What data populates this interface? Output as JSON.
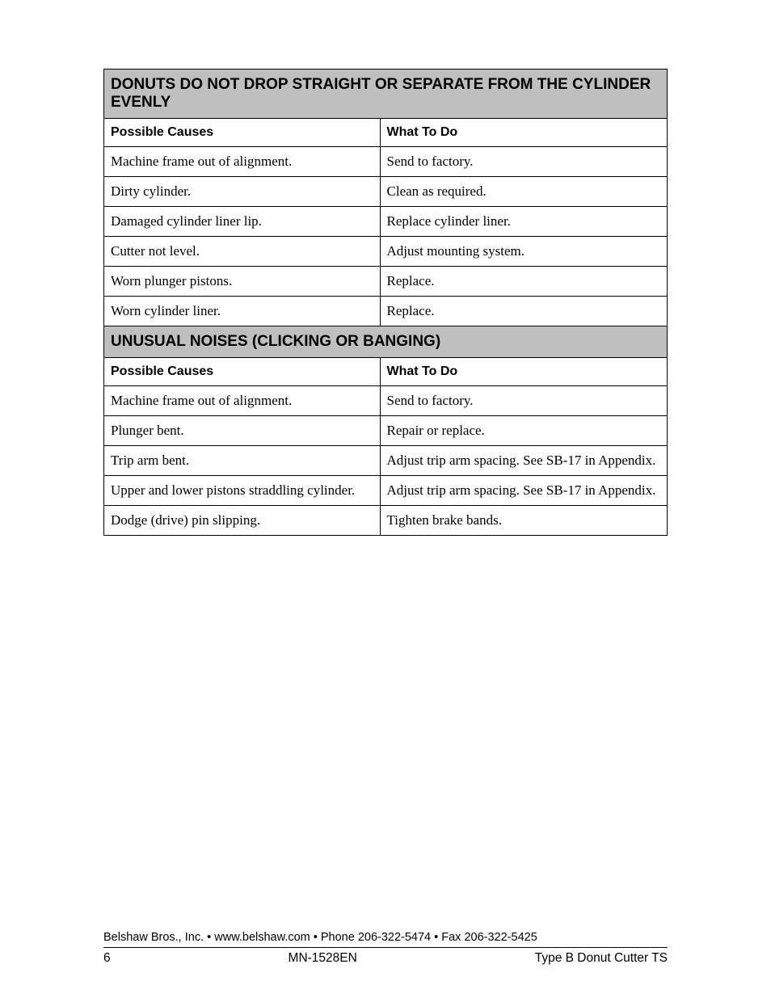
{
  "sections": [
    {
      "title": "DONUTS DO NOT DROP STRAIGHT OR SEPARATE FROM THE CYLINDER EVENLY",
      "headers": {
        "left": "Possible Causes",
        "right": "What To Do"
      },
      "rows": [
        {
          "cause": "Machine frame out of alignment.",
          "action": "Send to factory."
        },
        {
          "cause": "Dirty cylinder.",
          "action": "Clean as required."
        },
        {
          "cause": "Damaged cylinder liner lip.",
          "action": "Replace cylinder liner."
        },
        {
          "cause": "Cutter not level.",
          "action": "Adjust mounting system."
        },
        {
          "cause": "Worn plunger pistons.",
          "action": "Replace."
        },
        {
          "cause": "Worn cylinder liner.",
          "action": "Replace."
        }
      ]
    },
    {
      "title": "UNUSUAL NOISES (CLICKING OR BANGING)",
      "headers": {
        "left": "Possible Causes",
        "right": "What To Do"
      },
      "rows": [
        {
          "cause": "Machine frame out of alignment.",
          "action": "Send to factory."
        },
        {
          "cause": "Plunger bent.",
          "action": "Repair or replace."
        },
        {
          "cause": "Trip arm bent.",
          "action": "Adjust trip arm spacing.  See SB-17 in Appendix."
        },
        {
          "cause": "Upper and lower pistons straddling cylinder.",
          "action": "Adjust trip arm spacing.  See SB-17 in Appendix."
        },
        {
          "cause": "Dodge (drive) pin slipping.",
          "action": "Tighten brake bands."
        }
      ]
    }
  ],
  "footer": {
    "company": "Belshaw Bros., Inc.",
    "website": "www.belshaw.com",
    "phone": "Phone 206-322-5474",
    "fax": "Fax 206-322-5425",
    "page_number": "6",
    "doc_number": "MN-1528EN",
    "doc_title": "Type B Donut Cutter TS",
    "separator": "•"
  }
}
